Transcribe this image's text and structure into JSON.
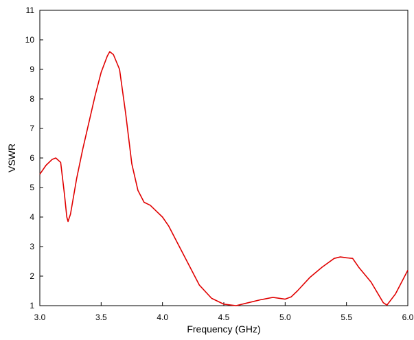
{
  "chart_data": {
    "type": "line",
    "x_label": "Frequency (GHz)",
    "y_label": "VSWR",
    "x": [
      3.0,
      3.05,
      3.1,
      3.13,
      3.17,
      3.2,
      3.22,
      3.23,
      3.25,
      3.3,
      3.35,
      3.4,
      3.45,
      3.5,
      3.55,
      3.57,
      3.6,
      3.65,
      3.7,
      3.75,
      3.8,
      3.85,
      3.9,
      3.95,
      4.0,
      4.05,
      4.1,
      4.2,
      4.3,
      4.4,
      4.5,
      4.6,
      4.7,
      4.8,
      4.9,
      5.0,
      5.05,
      5.1,
      5.2,
      5.3,
      5.4,
      5.45,
      5.5,
      5.55,
      5.6,
      5.7,
      5.8,
      5.83,
      5.9,
      6.0
    ],
    "series": [
      {
        "color": "#e00000",
        "values": [
          5.45,
          5.75,
          5.95,
          6.0,
          5.85,
          4.8,
          4.0,
          3.85,
          4.1,
          5.3,
          6.3,
          7.2,
          8.1,
          8.9,
          9.45,
          9.6,
          9.5,
          9.0,
          7.5,
          5.8,
          4.9,
          4.5,
          4.4,
          4.2,
          4.0,
          3.7,
          3.3,
          2.5,
          1.7,
          1.25,
          1.05,
          1.0,
          1.1,
          1.2,
          1.28,
          1.22,
          1.3,
          1.5,
          1.95,
          2.3,
          2.6,
          2.65,
          2.62,
          2.6,
          2.3,
          1.8,
          1.1,
          1.02,
          1.4,
          2.2
        ]
      }
    ],
    "xlim": [
      3,
      6
    ],
    "ylim": [
      1,
      11
    ],
    "xticks": [
      {
        "value": 3,
        "label": "3.0"
      },
      3.5,
      {
        "value": 4,
        "label": "4.0"
      },
      4.5,
      {
        "value": 5,
        "label": "5.0"
      },
      5.5,
      {
        "value": 6,
        "label": "6.0"
      }
    ],
    "yticks": [
      1,
      2,
      3,
      4,
      5,
      6,
      7,
      8,
      9,
      10,
      11
    ],
    "grid": false
  }
}
